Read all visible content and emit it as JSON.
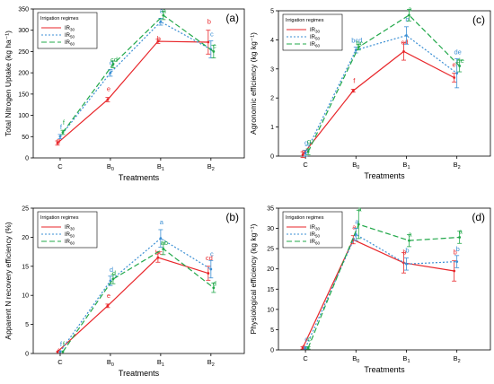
{
  "figure": {
    "legend_title": "Irrigation regimes",
    "legend_placement": "top-left",
    "xtick_labels": [
      "C",
      "B0",
      "B1",
      "B2"
    ],
    "series_names": [
      "IR30",
      "IR50",
      "IR60"
    ],
    "series_colors": [
      "#e8262a",
      "#3b8fd4",
      "#22a84a"
    ],
    "series_styles": [
      "solid",
      "dotted",
      "dashed"
    ]
  },
  "chart_data": [
    {
      "type": "line",
      "panel_label": "(a)",
      "xlabel": "Treatments",
      "ylabel": "Total Nitrogen Uptake (kg ha⁻¹)",
      "ylim": [
        0,
        350
      ],
      "yticks": [
        0,
        50,
        100,
        150,
        200,
        250,
        300,
        350
      ],
      "categories": [
        "C",
        "B0",
        "B1",
        "B2"
      ],
      "series": [
        {
          "name": "IR30",
          "values": [
            35,
            137,
            274,
            272
          ],
          "errors": [
            5,
            5,
            5,
            28
          ],
          "letters": [
            "g",
            "e",
            "b",
            "b"
          ]
        },
        {
          "name": "IR50",
          "values": [
            50,
            200,
            320,
            255
          ],
          "errors": [
            5,
            8,
            8,
            20
          ],
          "letters": [
            "f",
            "d",
            "a",
            "c"
          ]
        },
        {
          "name": "IR60",
          "values": [
            60,
            220,
            335,
            250
          ],
          "errors": [
            5,
            8,
            10,
            15
          ],
          "letters": [
            "f",
            "cd",
            "a",
            "c"
          ]
        }
      ]
    },
    {
      "type": "line",
      "panel_label": "(b)",
      "xlabel": "Treatments",
      "ylabel": "Apparent N recovery efficiency (%)",
      "ylim": [
        0,
        25
      ],
      "yticks": [
        0,
        5,
        10,
        15,
        20,
        25
      ],
      "categories": [
        "C",
        "B0",
        "B1",
        "B2"
      ],
      "series": [
        {
          "name": "IR30",
          "values": [
            0.3,
            8.2,
            16.5,
            13.8
          ],
          "errors": [
            0,
            0.3,
            0.8,
            1.2
          ],
          "letters": [
            "f",
            "e",
            "bc",
            "cd"
          ]
        },
        {
          "name": "IR50",
          "values": [
            0.3,
            12.5,
            19.8,
            14.5
          ],
          "errors": [
            0,
            0.8,
            1.5,
            1.5
          ],
          "letters": [
            "f",
            "d",
            "a",
            "c"
          ]
        },
        {
          "name": "IR60",
          "values": [
            0.3,
            12.8,
            18.0,
            11.3
          ],
          "errors": [
            0,
            0.8,
            1.0,
            0.8
          ],
          "letters": [
            "f",
            "d",
            "ab",
            "d"
          ]
        }
      ]
    },
    {
      "type": "line",
      "panel_label": "(c)",
      "xlabel": "Treatments",
      "ylabel": "Agronomic efficiency (kg kg⁻¹)",
      "ylim": [
        0,
        5
      ],
      "yticks": [
        0,
        1,
        2,
        3,
        4,
        5
      ],
      "categories": [
        "C",
        "B0",
        "B1",
        "B2"
      ],
      "series": [
        {
          "name": "IR30",
          "values": [
            0.05,
            2.25,
            3.6,
            2.7
          ],
          "errors": [
            0.1,
            0.05,
            0.3,
            0.15
          ],
          "letters": [
            "g",
            "f",
            "cd",
            "ef"
          ]
        },
        {
          "name": "IR50",
          "values": [
            0.1,
            3.65,
            4.15,
            2.85
          ],
          "errors": [
            0.1,
            0.1,
            0.3,
            0.5
          ],
          "letters": [
            "g",
            "bcd",
            "b",
            "de"
          ]
        },
        {
          "name": "IR60",
          "values": [
            0.15,
            3.75,
            4.85,
            3.1
          ],
          "errors": [
            0.1,
            0.1,
            0.2,
            0.2
          ],
          "letters": [
            "g",
            "bc",
            "a",
            "de"
          ]
        }
      ]
    },
    {
      "type": "line",
      "panel_label": "(d)",
      "xlabel": "Treatments",
      "ylabel": "Physiological efficiency (kg kg⁻¹)",
      "ylim": [
        0,
        35
      ],
      "yticks": [
        0,
        5,
        10,
        15,
        20,
        25,
        30,
        35
      ],
      "categories": [
        "C",
        "B0",
        "B1",
        "B2"
      ],
      "series": [
        {
          "name": "IR30",
          "values": [
            0.5,
            27.2,
            21.5,
            19.5
          ],
          "errors": [
            0.3,
            1,
            2.5,
            2.5
          ],
          "letters": [
            "c",
            "a",
            "b",
            "b"
          ]
        },
        {
          "name": "IR50",
          "values": [
            0.5,
            28.5,
            21.2,
            21.8
          ],
          "errors": [
            0.3,
            1.5,
            1.5,
            1.5
          ],
          "letters": [
            "c",
            "a",
            "b",
            "b"
          ]
        },
        {
          "name": "IR60",
          "values": [
            0.5,
            31.0,
            27.0,
            27.8
          ],
          "errors": [
            0.3,
            3.5,
            1.5,
            1.5
          ],
          "letters": [
            "c",
            "a",
            "a",
            "a"
          ]
        }
      ]
    }
  ]
}
